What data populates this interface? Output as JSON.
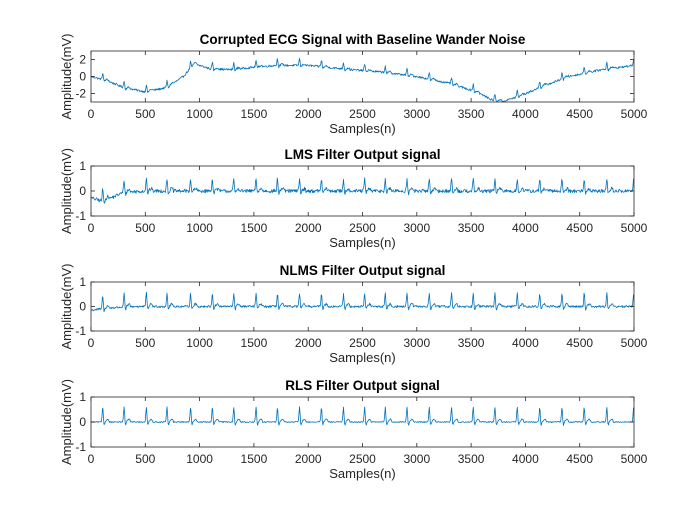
{
  "chart_data": [
    {
      "type": "line",
      "title": "Corrupted ECG Signal with Baseline Wander Noise",
      "xlabel": "Samples(n)",
      "ylabel": "Amplitude(mV)",
      "xlim": [
        0,
        5000
      ],
      "ylim": [
        -3,
        3
      ],
      "xticks": [
        0,
        500,
        1000,
        1500,
        2000,
        2500,
        3000,
        3500,
        4000,
        4500,
        5000
      ],
      "yticks": [
        -2,
        0,
        2
      ],
      "color": "#0072BD",
      "series": [
        {
          "name": "corrupted",
          "baseline": [
            [
              0,
              0
            ],
            [
              150,
              -0.5
            ],
            [
              300,
              -1.3
            ],
            [
              500,
              -1.8
            ],
            [
              700,
              -1.3
            ],
            [
              850,
              0
            ],
            [
              950,
              1.5
            ],
            [
              1100,
              0.9
            ],
            [
              1300,
              0.8
            ],
            [
              1500,
              1.1
            ],
            [
              1700,
              1.3
            ],
            [
              2000,
              1.3
            ],
            [
              2400,
              0.8
            ],
            [
              2700,
              0.5
            ],
            [
              3000,
              0
            ],
            [
              3300,
              -0.8
            ],
            [
              3550,
              -1.8
            ],
            [
              3700,
              -2.8
            ],
            [
              3800,
              -2.9
            ],
            [
              3950,
              -2.3
            ],
            [
              4150,
              -1.2
            ],
            [
              4400,
              0
            ],
            [
              4700,
              0.8
            ],
            [
              5000,
              1.3
            ]
          ],
          "beats": [
            108,
            305,
            510,
            700,
            917,
            1118,
            1315,
            1520,
            1717,
            1920,
            2122,
            2325,
            2520,
            2710,
            2910,
            3115,
            3320,
            3520,
            3720,
            3925,
            4132,
            4337,
            4542,
            4750,
            4997
          ],
          "beat_amp": 0.8,
          "noise": 0.12
        }
      ]
    },
    {
      "type": "line",
      "title": "LMS Filter Output signal",
      "xlabel": "Samples(n)",
      "ylabel": "Amplitude(mV)",
      "xlim": [
        0,
        5000
      ],
      "ylim": [
        -1,
        1
      ],
      "xticks": [
        0,
        500,
        1000,
        1500,
        2000,
        2500,
        3000,
        3500,
        4000,
        4500,
        5000
      ],
      "yticks": [
        -1,
        0,
        1
      ],
      "color": "#0072BD",
      "series": [
        {
          "name": "lms_output",
          "baseline": [
            [
              0,
              -0.28
            ],
            [
              100,
              -0.4
            ],
            [
              200,
              -0.25
            ],
            [
              300,
              -0.05
            ],
            [
              500,
              0
            ],
            [
              5000,
              0
            ]
          ],
          "beats": [
            108,
            305,
            510,
            700,
            917,
            1118,
            1315,
            1520,
            1717,
            1920,
            2122,
            2325,
            2520,
            2710,
            2910,
            3115,
            3320,
            3520,
            3720,
            3925,
            4132,
            4337,
            4542,
            4750,
            4997
          ],
          "beat_amp": 0.5,
          "noise": 0.07
        }
      ]
    },
    {
      "type": "line",
      "title": "NLMS Filter Output signal",
      "xlabel": "Samples(n)",
      "ylabel": "Amplitude(mV)",
      "xlim": [
        0,
        5000
      ],
      "ylim": [
        -1,
        1
      ],
      "xticks": [
        0,
        500,
        1000,
        1500,
        2000,
        2500,
        3000,
        3500,
        4000,
        4500,
        5000
      ],
      "yticks": [
        -1,
        0,
        1
      ],
      "color": "#0072BD",
      "series": [
        {
          "name": "nlms_output",
          "baseline": [
            [
              0,
              -0.15
            ],
            [
              200,
              -0.05
            ],
            [
              400,
              0
            ],
            [
              5000,
              0
            ]
          ],
          "beats": [
            108,
            305,
            510,
            700,
            917,
            1118,
            1315,
            1520,
            1717,
            1920,
            2122,
            2325,
            2520,
            2710,
            2910,
            3115,
            3320,
            3520,
            3720,
            3925,
            4132,
            4337,
            4542,
            4750,
            4997
          ],
          "beat_amp": 0.55,
          "noise": 0.045
        }
      ]
    },
    {
      "type": "line",
      "title": "RLS Filter Output signal",
      "xlabel": "Samples(n)",
      "ylabel": "Amplitude(mV)",
      "xlim": [
        0,
        5000
      ],
      "ylim": [
        -1,
        1
      ],
      "xticks": [
        0,
        500,
        1000,
        1500,
        2000,
        2500,
        3000,
        3500,
        4000,
        4500,
        5000
      ],
      "yticks": [
        -1,
        0,
        1
      ],
      "color": "#0072BD",
      "series": [
        {
          "name": "rls_output",
          "baseline": [
            [
              0,
              0
            ],
            [
              5000,
              0
            ]
          ],
          "beats": [
            108,
            305,
            510,
            700,
            917,
            1118,
            1315,
            1520,
            1717,
            1920,
            2122,
            2325,
            2520,
            2710,
            2910,
            3115,
            3320,
            3520,
            3720,
            3925,
            4132,
            4337,
            4542,
            4750,
            4997
          ],
          "beat_amp": 0.6,
          "noise": 0.02
        }
      ]
    }
  ]
}
